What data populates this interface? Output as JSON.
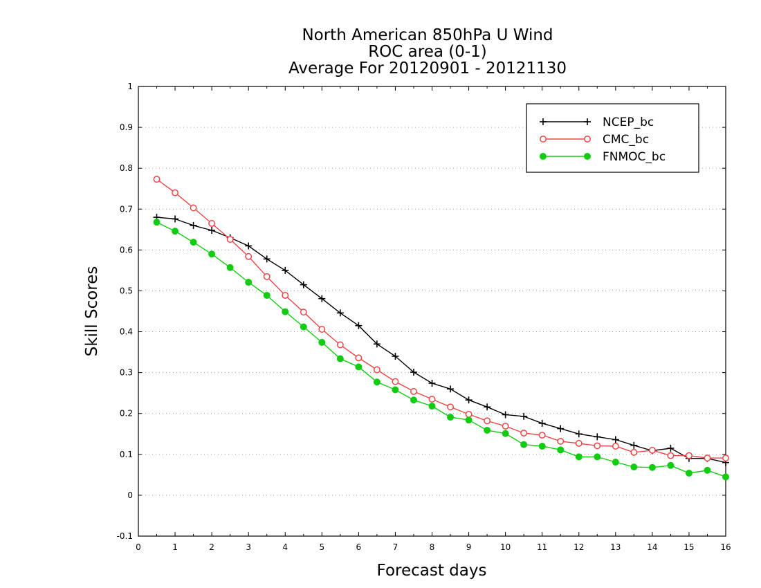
{
  "chart_data": {
    "type": "line",
    "title_lines": [
      "North American 850hPa U Wind",
      "ROC area (0-1)",
      "Average For 20120901 - 20121130"
    ],
    "xlabel": "Forecast days",
    "ylabel": "Skill Scores",
    "xlim": [
      0,
      16
    ],
    "ylim": [
      -0.1,
      1
    ],
    "xticks": [
      0,
      1,
      2,
      3,
      4,
      5,
      6,
      7,
      8,
      9,
      10,
      11,
      12,
      13,
      14,
      15,
      16
    ],
    "xtick_labels": [
      "0",
      "1",
      "2",
      "3",
      "4",
      "5",
      "6",
      "7",
      "8",
      "9",
      "10",
      "11",
      "12",
      "13",
      "14",
      "15",
      "16"
    ],
    "yticks": [
      -0.1,
      0,
      0.1,
      0.2,
      0.3,
      0.4,
      0.5,
      0.6,
      0.7,
      0.8,
      0.9,
      1
    ],
    "ytick_labels": [
      "-0.1",
      "0",
      "0.1",
      "0.2",
      "0.3",
      "0.4",
      "0.5",
      "0.6",
      "0.7",
      "0.8",
      "0.9",
      "1"
    ],
    "grid": "horizontal-dotted",
    "legend_position": "top-right",
    "x": [
      0.5,
      1,
      1.5,
      2,
      2.5,
      3,
      3.5,
      4,
      4.5,
      5,
      5.5,
      6,
      6.5,
      7,
      7.5,
      8,
      8.5,
      9,
      9.5,
      10,
      10.5,
      11,
      11.5,
      12,
      12.5,
      13,
      13.5,
      14,
      14.5,
      15,
      15.5,
      16
    ],
    "series": [
      {
        "name": "NCEP_bc",
        "color": "#000000",
        "marker": "plus",
        "values": [
          0.68,
          0.676,
          0.66,
          0.648,
          0.63,
          0.61,
          0.578,
          0.55,
          0.515,
          0.481,
          0.446,
          0.415,
          0.37,
          0.34,
          0.301,
          0.274,
          0.26,
          0.233,
          0.216,
          0.197,
          0.193,
          0.176,
          0.163,
          0.15,
          0.143,
          0.136,
          0.122,
          0.109,
          0.115,
          0.09,
          0.09,
          0.08
        ]
      },
      {
        "name": "CMC_bc",
        "color": "#ee4444",
        "marker": "open-circle",
        "values": [
          0.773,
          0.74,
          0.703,
          0.665,
          0.626,
          0.584,
          0.535,
          0.489,
          0.448,
          0.406,
          0.368,
          0.336,
          0.307,
          0.278,
          0.254,
          0.235,
          0.216,
          0.198,
          0.182,
          0.169,
          0.152,
          0.147,
          0.132,
          0.127,
          0.121,
          0.12,
          0.105,
          0.11,
          0.097,
          0.097,
          0.091,
          0.091
        ]
      },
      {
        "name": "FNMOC_bc",
        "color": "#11cc11",
        "marker": "filled-circle",
        "values": [
          0.668,
          0.646,
          0.619,
          0.59,
          0.557,
          0.521,
          0.489,
          0.449,
          0.412,
          0.374,
          0.334,
          0.314,
          0.277,
          0.258,
          0.233,
          0.218,
          0.191,
          0.184,
          0.159,
          0.151,
          0.124,
          0.12,
          0.111,
          0.094,
          0.094,
          0.081,
          0.069,
          0.068,
          0.073,
          0.054,
          0.061,
          0.045
        ]
      }
    ]
  }
}
